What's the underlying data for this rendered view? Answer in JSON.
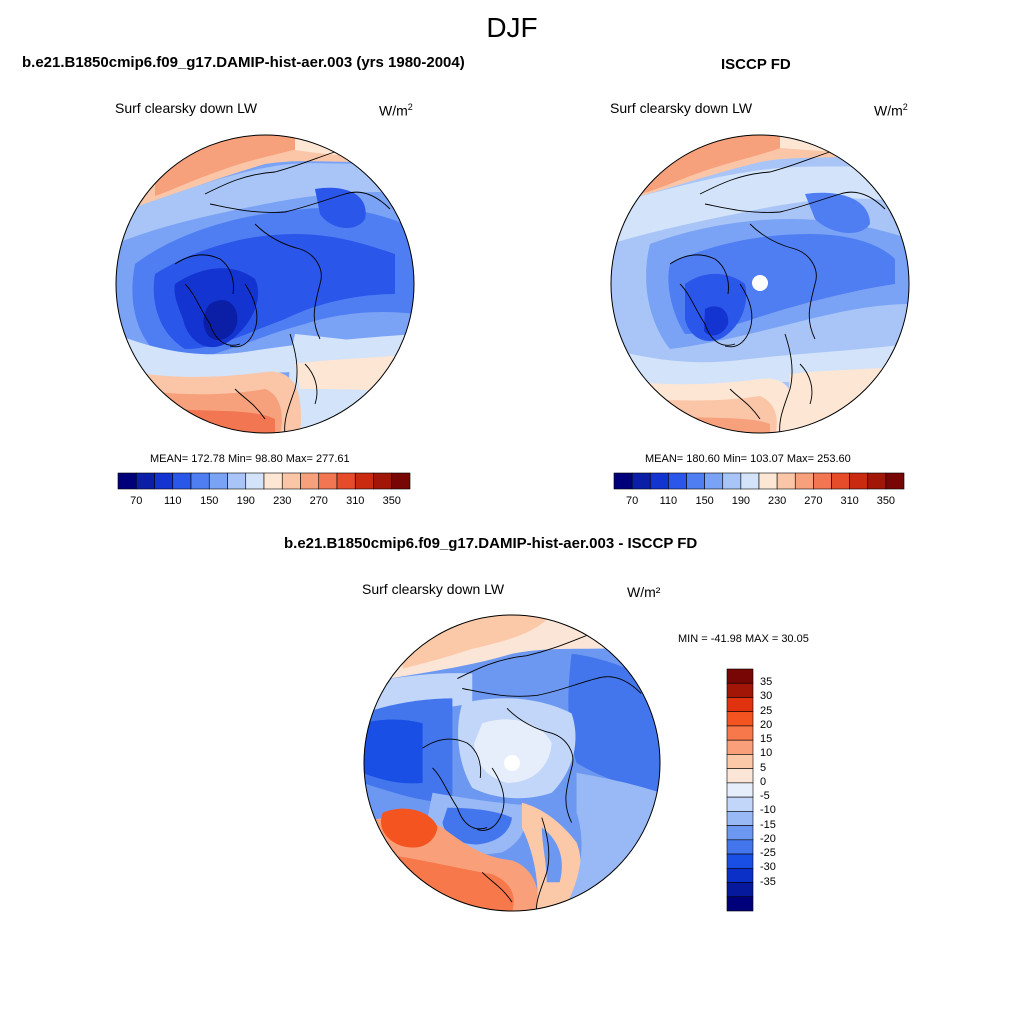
{
  "figure": {
    "title": "DJF"
  },
  "panels": [
    {
      "id": "model",
      "title": "b.e21.B1850cmip6.f09_g17.DAMIP-hist-aer.003 (yrs 1980-2004)",
      "variable": "Surf clearsky down LW",
      "units_base": "W/m",
      "units_exp": "2",
      "stats_text": "MEAN= 172.78  Min=  98.80  Max= 277.61",
      "mean": 172.78,
      "min": 98.8,
      "max": 277.61
    },
    {
      "id": "obs",
      "title": "ISCCP FD",
      "variable": "Surf clearsky down LW",
      "units_base": "W/m",
      "units_exp": "2",
      "stats_text": "MEAN= 180.60  Min= 103.07  Max= 253.60",
      "mean": 180.6,
      "min": 103.07,
      "max": 253.6
    },
    {
      "id": "diff",
      "title": "b.e21.B1850cmip6.f09_g17.DAMIP-hist-aer.003 - ISCCP FD",
      "variable": "Surf clearsky down LW",
      "units": "W/m²",
      "stats_text": "MIN = -41.98 MAX =  30.05",
      "min": -41.98,
      "max": 30.05
    }
  ],
  "colorbar_abs": {
    "colors": [
      "#00007a",
      "#0a1fa6",
      "#1434d1",
      "#2a56ea",
      "#4f7ef2",
      "#7aa3f5",
      "#a9c5f7",
      "#d2e3fa",
      "#fde6d4",
      "#fbc6a8",
      "#f7a07c",
      "#f27652",
      "#e74c2a",
      "#c92a10",
      "#a11607",
      "#780604"
    ],
    "tick_labels": [
      "70",
      "110",
      "150",
      "190",
      "230",
      "270",
      "310",
      "350"
    ]
  },
  "colorbar_diff": {
    "colors": [
      "#780604",
      "#a11607",
      "#e0320e",
      "#f4541f",
      "#f7784a",
      "#f9a07a",
      "#fcc9a8",
      "#fbe5d6",
      "#e6eefb",
      "#c1d6f8",
      "#98b9f5",
      "#6d98f1",
      "#4376ec",
      "#1a4fe6",
      "#0a30c8",
      "#06189c",
      "#00007a"
    ],
    "tick_labels": [
      "35",
      "30",
      "25",
      "20",
      "15",
      "10",
      "5",
      "0",
      "-5",
      "-10",
      "-15",
      "-20",
      "-25",
      "-30",
      "-35"
    ]
  },
  "legend_colors": {
    "coast": "#000000"
  }
}
